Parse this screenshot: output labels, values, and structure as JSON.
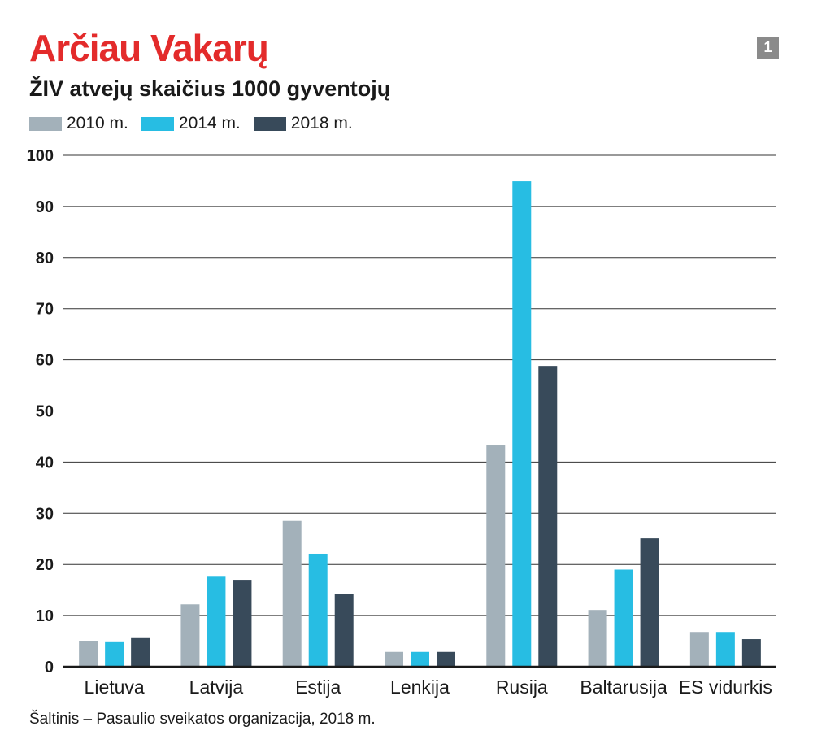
{
  "header": {
    "title": "Arčiau Vakarų",
    "subtitle": "ŽIV atvejų skaičius 1000 gyventojų",
    "badge": "1"
  },
  "legend": [
    {
      "label": "2010 m.",
      "color": "#a3b1ba"
    },
    {
      "label": "2014 m.",
      "color": "#27bde3"
    },
    {
      "label": "2018 m.",
      "color": "#384a5a"
    }
  ],
  "source": "Šaltinis – Pasaulio sveikatos organizacija, 2018 m.",
  "chart_data": {
    "type": "bar",
    "title": "ŽIV atvejų skaičius 1000 gyventojų",
    "categories": [
      "Lietuva",
      "Latvija",
      "Estija",
      "Lenkija",
      "Rusija",
      "Baltarusija",
      "ES vidurkis"
    ],
    "series": [
      {
        "name": "2010 m.",
        "color": "#a3b1ba",
        "values": [
          5.0,
          12.2,
          28.5,
          2.9,
          43.4,
          11.1,
          6.8
        ]
      },
      {
        "name": "2014 m.",
        "color": "#27bde3",
        "values": [
          4.8,
          17.6,
          22.1,
          2.9,
          94.9,
          19.0,
          6.8
        ]
      },
      {
        "name": "2018 m.",
        "color": "#384a5a",
        "values": [
          5.6,
          17.0,
          14.2,
          2.9,
          58.8,
          25.1,
          5.4
        ]
      }
    ],
    "yticks": [
      0,
      10,
      20,
      30,
      40,
      50,
      60,
      70,
      80,
      90,
      100
    ],
    "ylim": [
      0,
      100
    ],
    "grid": true,
    "legend_position": "top-left"
  }
}
